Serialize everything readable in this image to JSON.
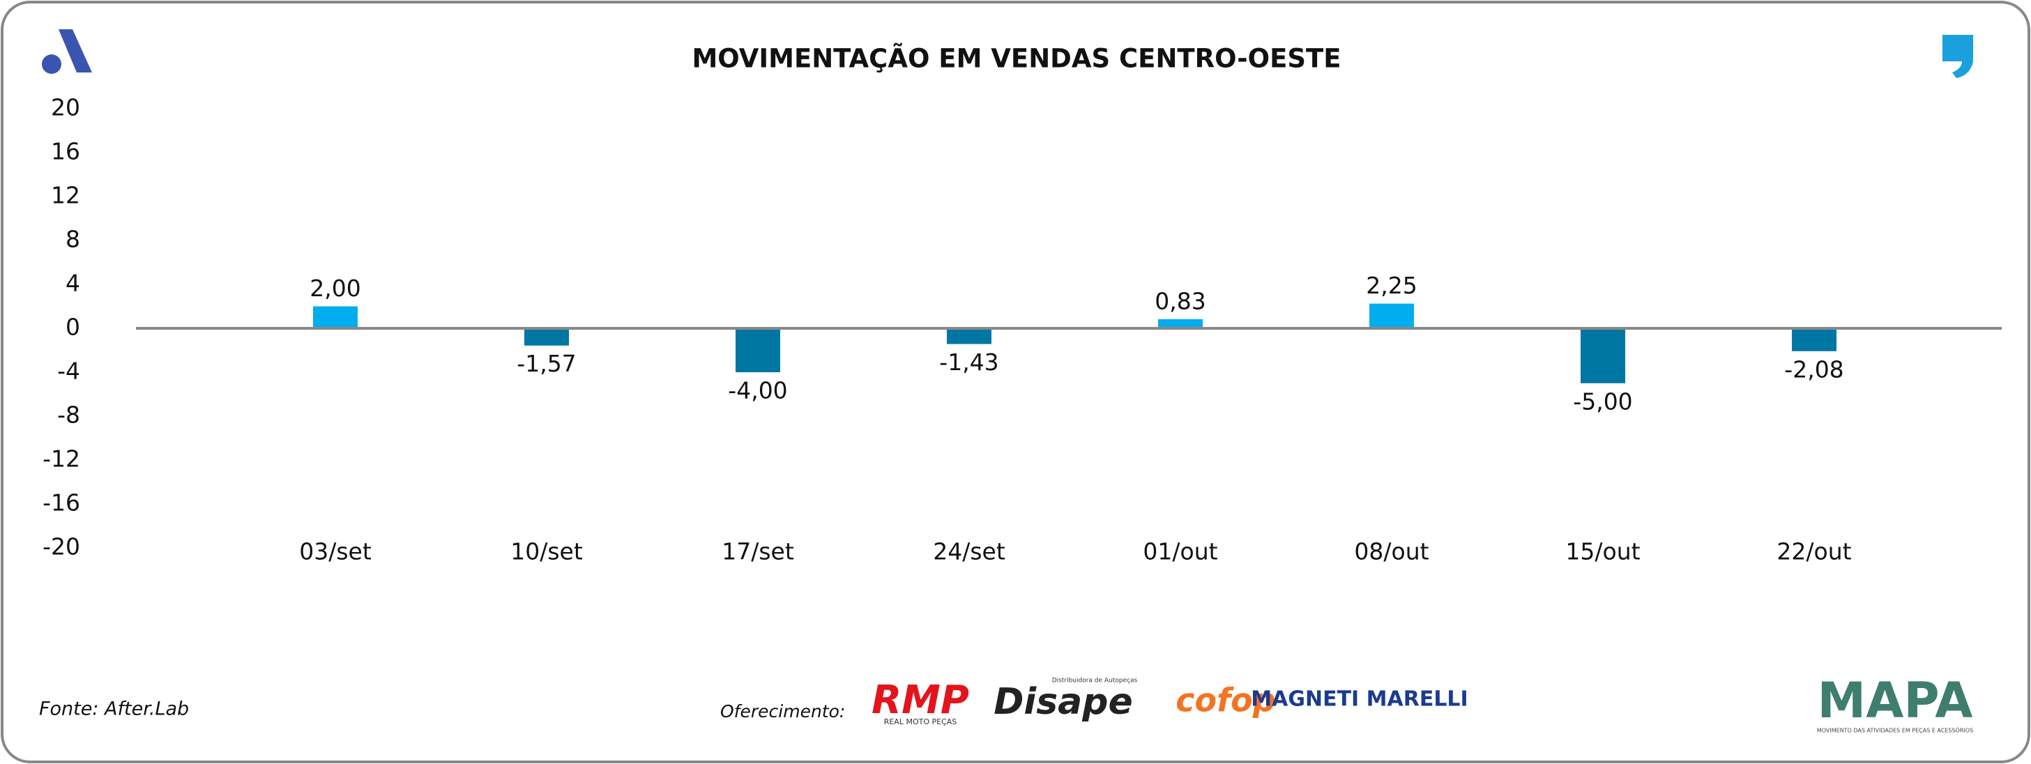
{
  "chart_data": {
    "type": "bar",
    "title": "MOVIMENTAÇÃO EM VENDAS CENTRO-OESTE",
    "categories": [
      "03/set",
      "10/set",
      "17/set",
      "24/set",
      "01/out",
      "08/out",
      "15/out",
      "22/out"
    ],
    "values": [
      2.0,
      -1.57,
      -4.0,
      -1.43,
      0.83,
      2.25,
      -5.0,
      -2.08
    ],
    "value_labels": [
      "2,00",
      "-1,57",
      "-4,00",
      "-1,43",
      "0,83",
      "2,25",
      "-5,00",
      "-2,08"
    ],
    "positive_color": "#00adef",
    "negative_color": "#0076a3",
    "ylim": [
      -20,
      20
    ],
    "yticks": [
      -20,
      -16,
      -12,
      -8,
      -4,
      0,
      4,
      8,
      12,
      16,
      20
    ]
  },
  "footer": {
    "source": "Fonte: After.Lab",
    "sponsor_label": "Oferecimento:",
    "sponsors": [
      "RMP",
      "Disape",
      "cofop",
      "MAGNETI MARELLI"
    ],
    "sponsor_subtitles": [
      "REAL MOTO PEÇAS",
      "Distribuidora de Autopeças"
    ],
    "brand": "MAPA",
    "brand_subtitle": "MOVIMENTO DAS ATIVIDADES EM PEÇAS E ACESSÓRIOS"
  }
}
